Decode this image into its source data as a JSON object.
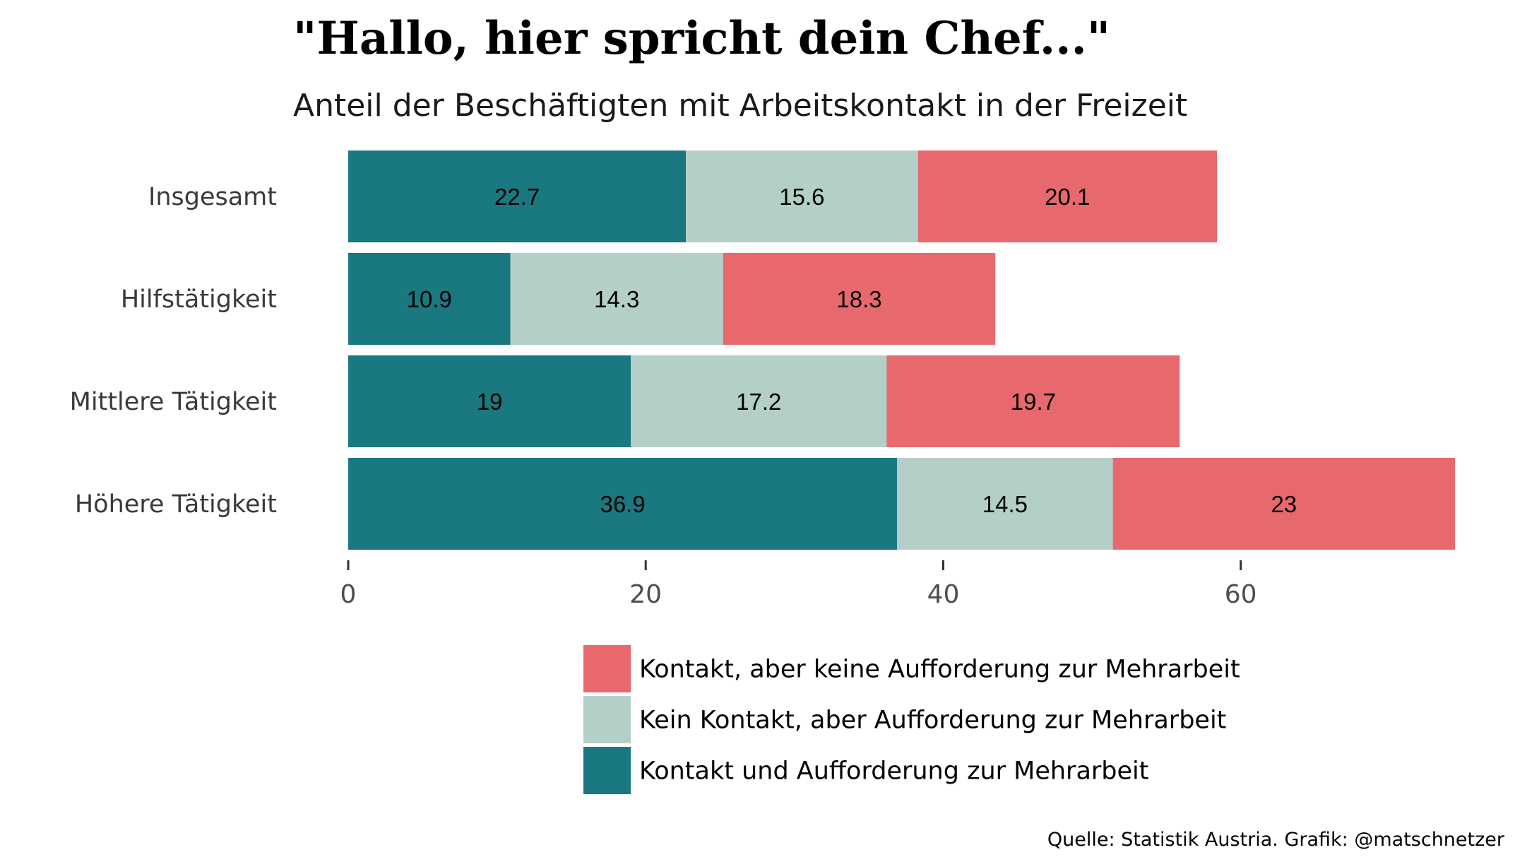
{
  "chart_data": {
    "type": "bar",
    "orientation": "horizontal",
    "stacked": true,
    "title": "\"Hallo, hier spricht dein Chef...\"",
    "subtitle": "Anteil der Beschäftigten mit Arbeitskontakt in der Freizeit",
    "caption": "Quelle: Statistik Austria. Grafik: @matschnetzer",
    "categories": [
      "Insgesamt",
      "Hilfstätigkeit",
      "Mittlere Tätigkeit",
      "Höhere Tätigkeit"
    ],
    "series": [
      {
        "name": "Kontakt und Aufforderung zur Mehrarbeit",
        "color": "#1a7880",
        "values": [
          22.7,
          10.9,
          19,
          36.9
        ]
      },
      {
        "name": "Kein Kontakt, aber Aufforderung zur Mehrarbeit",
        "color": "#b3cfc8",
        "values": [
          15.6,
          14.3,
          17.2,
          14.5
        ]
      },
      {
        "name": "Kontakt, aber keine Aufforderung zur Mehrarbeit",
        "color": "#e8696d",
        "values": [
          20.1,
          18.3,
          19.7,
          23
        ]
      }
    ],
    "data_labels": [
      [
        "22.7",
        "10.9",
        "19",
        "36.9"
      ],
      [
        "15.6",
        "14.3",
        "17.2",
        "14.5"
      ],
      [
        "20.1",
        "18.3",
        "19.7",
        "23"
      ]
    ],
    "xlim": [
      0,
      74.4
    ],
    "x_ticks": [
      0,
      20,
      40,
      60
    ],
    "x_tick_labels": [
      "0",
      "20",
      "40",
      "60"
    ],
    "xlabel": "",
    "ylabel": "",
    "grid": false,
    "legend": {
      "position": "bottom",
      "entries": [
        "Kontakt, aber keine Aufforderung zur Mehrarbeit",
        "Kein Kontakt, aber Aufforderung zur Mehrarbeit",
        "Kontakt und Aufforderung zur Mehrarbeit"
      ],
      "colors": [
        "#e8696d",
        "#b3cfc8",
        "#1a7880"
      ]
    }
  }
}
